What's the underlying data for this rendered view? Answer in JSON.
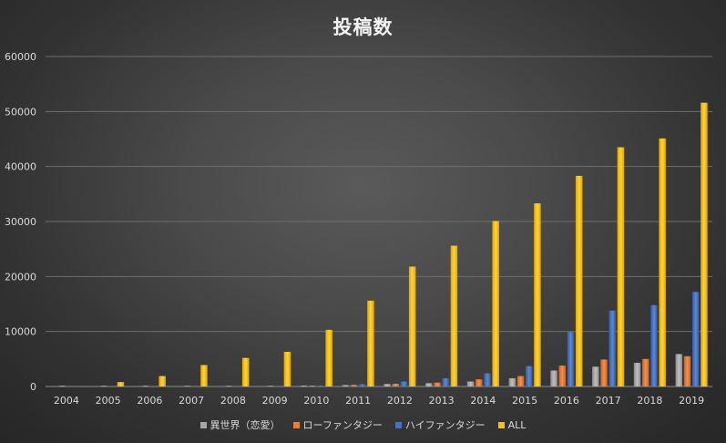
{
  "chart_data": {
    "type": "bar",
    "title": "投稿数",
    "xlabel": "",
    "ylabel": "",
    "ylim": [
      0,
      60000
    ],
    "yticks": [
      0,
      10000,
      20000,
      30000,
      40000,
      50000,
      60000
    ],
    "grid": true,
    "legend_position": "bottom",
    "categories": [
      "2004",
      "2005",
      "2006",
      "2007",
      "2008",
      "2009",
      "2010",
      "2011",
      "2012",
      "2013",
      "2014",
      "2015",
      "2016",
      "2017",
      "2018",
      "2019"
    ],
    "series": [
      {
        "name": "異世界（恋愛）",
        "color": "#a5a5a5",
        "values": [
          0,
          0,
          0,
          0,
          0,
          0,
          50,
          250,
          450,
          600,
          900,
          1500,
          2900,
          3600,
          4300,
          5900
        ]
      },
      {
        "name": "ローファンタジー",
        "color": "#ed7d31",
        "values": [
          20,
          30,
          50,
          80,
          80,
          100,
          150,
          300,
          500,
          700,
          1300,
          1900,
          3800,
          4900,
          5000,
          5500
        ]
      },
      {
        "name": "ハイファンタジー",
        "color": "#4472c4",
        "values": [
          0,
          0,
          0,
          0,
          0,
          0,
          150,
          400,
          900,
          1500,
          2400,
          3700,
          9900,
          13800,
          14800,
          17200
        ]
      },
      {
        "name": "ALL",
        "color": "#ffc000",
        "values": [
          0,
          800,
          1900,
          3900,
          5200,
          6300,
          10300,
          15600,
          21800,
          25600,
          30100,
          33300,
          38300,
          43500,
          45100,
          51600
        ]
      }
    ]
  }
}
